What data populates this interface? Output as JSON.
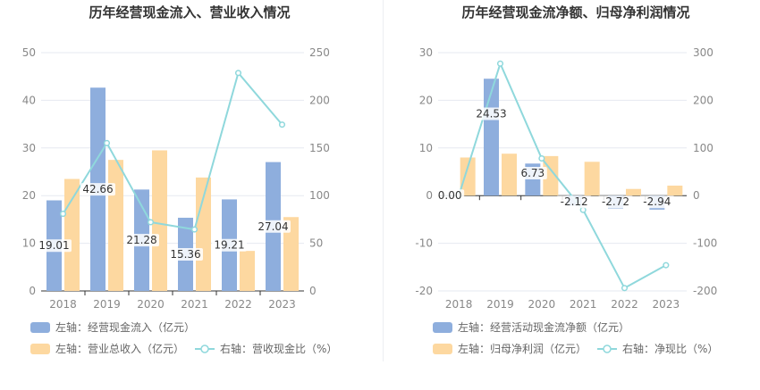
{
  "chart_data": [
    {
      "type": "bar+line",
      "title": "历年经营现金流入、营业收入情况",
      "categories": [
        "2018",
        "2019",
        "2020",
        "2021",
        "2022",
        "2023"
      ],
      "left_axis": {
        "ticks": [
          "0",
          "10",
          "20",
          "30",
          "40",
          "50"
        ],
        "ylim": [
          0,
          50
        ]
      },
      "right_axis": {
        "ticks": [
          "0",
          "50",
          "100",
          "150",
          "200",
          "250"
        ],
        "ylim": [
          0,
          250
        ]
      },
      "series": [
        {
          "name": "左轴：经营现金流入（亿元）",
          "kind": "bar",
          "axis": "left",
          "color": "#8eaedd",
          "values": [
            19.01,
            42.66,
            21.28,
            15.36,
            19.21,
            27.04
          ],
          "labels": [
            "19.01",
            "42.66",
            "21.28",
            "15.36",
            "19.21",
            "27.04"
          ]
        },
        {
          "name": "左轴：营业总收入（亿元）",
          "kind": "bar",
          "axis": "left",
          "color": "#fdd8a0",
          "values": [
            23.5,
            27.5,
            29.5,
            23.8,
            8.4,
            15.5
          ]
        },
        {
          "name": "右轴：营收现金比（%）",
          "kind": "line",
          "axis": "right",
          "color": "#8fd8dc",
          "values": [
            80.9,
            155.1,
            72.1,
            64.5,
            228.7,
            174.5
          ]
        }
      ],
      "legend": [
        {
          "label": "左轴：经营现金流入（亿元）",
          "kind": "bar",
          "color": "#8eaedd"
        },
        {
          "label": "左轴：营业总收入（亿元）",
          "kind": "bar",
          "color": "#fdd8a0"
        },
        {
          "label": "右轴：营收现金比（%）",
          "kind": "line",
          "color": "#8fd8dc"
        }
      ]
    },
    {
      "type": "bar+line",
      "title": "历年经营现金流净额、归母净利润情况",
      "categories": [
        "2018",
        "2019",
        "2020",
        "2021",
        "2022",
        "2023"
      ],
      "left_axis": {
        "ticks": [
          "-20",
          "-10",
          "0",
          "10",
          "20",
          "30"
        ],
        "ylim": [
          -20,
          30
        ]
      },
      "right_axis": {
        "ticks": [
          "-200",
          "-100",
          "0",
          "100",
          "200",
          "300"
        ],
        "ylim": [
          -200,
          300
        ]
      },
      "series": [
        {
          "name": "左轴：经营活动现金流净额（亿元）",
          "kind": "bar",
          "axis": "left",
          "color": "#8eaedd",
          "values": [
            0.0,
            24.53,
            6.73,
            -2.12,
            -2.72,
            -2.94
          ],
          "labels": [
            "0.00",
            "24.53",
            "6.73",
            "-2.12",
            "-2.72",
            "-2.94"
          ]
        },
        {
          "name": "左轴：归母净利润（亿元）",
          "kind": "bar",
          "axis": "left",
          "color": "#fdd8a0",
          "values": [
            8.0,
            8.8,
            8.3,
            7.1,
            1.4,
            2.1
          ]
        },
        {
          "name": "右轴：净现比（%）",
          "kind": "line",
          "axis": "right",
          "color": "#8fd8dc",
          "values": [
            0,
            277,
            78,
            -30,
            -194,
            -146
          ]
        }
      ],
      "legend": [
        {
          "label": "左轴：经营活动现金流净额（亿元）",
          "kind": "bar",
          "color": "#8eaedd"
        },
        {
          "label": "左轴：归母净利润（亿元）",
          "kind": "bar",
          "color": "#fdd8a0"
        },
        {
          "label": "右轴：净现比（%）",
          "kind": "line",
          "color": "#8fd8dc"
        }
      ]
    }
  ]
}
